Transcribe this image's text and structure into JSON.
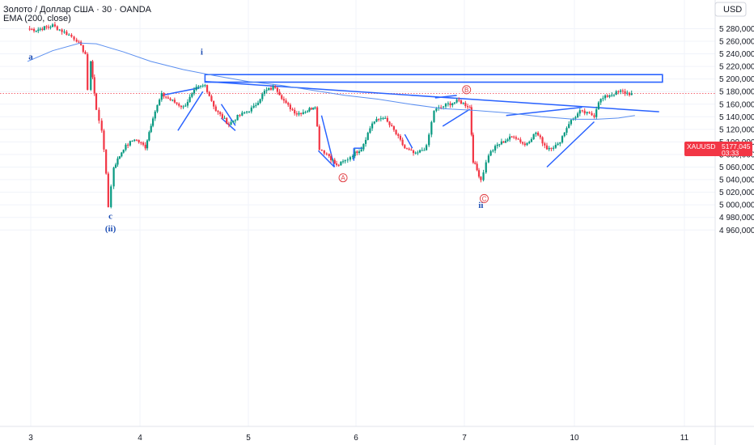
{
  "header": {
    "symbol_line": "Золото / Доллар США · 30 · OANDA",
    "indicator_line": "EMA (200, close)"
  },
  "currency_button": "USD",
  "price_tag": {
    "symbol": "XAUUSD",
    "price": "5177,045",
    "countdown": "03:33"
  },
  "colors": {
    "up": "#089981",
    "down": "#f23645",
    "ema": "#5b8ff0",
    "drawing": "#2962ff",
    "grid": "#f0f3fa",
    "wave_blue": "#1f4fb4",
    "wave_red": "#e0393e"
  },
  "wave_labels": [
    {
      "text": "a",
      "x": "3.0",
      "y": 5236,
      "style": "blue"
    },
    {
      "text": "i",
      "x": "4.57",
      "y": 5244,
      "style": "blue"
    },
    {
      "text": "c",
      "x": "3.73",
      "y": 4983,
      "style": "blue"
    },
    {
      "text": "(ii)",
      "x": "3.73",
      "y": 4963,
      "style": "blue"
    },
    {
      "text": "ii",
      "x": "7.15",
      "y": 5000,
      "style": "blue"
    },
    {
      "text": "A",
      "x": "5.88",
      "y": 5043,
      "style": "red-circle"
    },
    {
      "text": "B",
      "x": "7.02",
      "y": 5183,
      "style": "red-circle"
    },
    {
      "text": "C",
      "x": "7.18",
      "y": 5010,
      "style": "red-circle"
    }
  ],
  "chart_data": {
    "type": "candlestick",
    "instrument": "Золото / Доллар США · 30 · OANDA",
    "indicator": "EMA (200, close)",
    "x_ticks": [
      "3",
      "4",
      "5",
      "6",
      "7",
      "10",
      "11"
    ],
    "y_ticks": [
      "4 960,000",
      "4 980,000",
      "5 000,000",
      "5 020,000",
      "5 040,000",
      "5 060,000",
      "5 080,000",
      "5 100,000",
      "5 120,000",
      "5 140,000",
      "5 160,000",
      "5 180,000",
      "5 200,000",
      "5 220,000",
      "5 240,000",
      "5 260,000",
      "5 280,000"
    ],
    "ylim": [
      4955,
      5285
    ],
    "current_price": 5177.045,
    "grid": true,
    "candle_path": [
      [
        2.97,
        5280
      ],
      [
        3.05,
        5278
      ],
      [
        3.2,
        5285
      ],
      [
        3.35,
        5270
      ],
      [
        3.42,
        5262
      ],
      [
        3.5,
        5240
      ],
      [
        3.52,
        5180
      ],
      [
        3.55,
        5230
      ],
      [
        3.6,
        5150
      ],
      [
        3.65,
        5120
      ],
      [
        3.69,
        5050
      ],
      [
        3.71,
        4998
      ],
      [
        3.76,
        5060
      ],
      [
        3.85,
        5090
      ],
      [
        3.95,
        5105
      ],
      [
        4.05,
        5092
      ],
      [
        4.12,
        5140
      ],
      [
        4.2,
        5175
      ],
      [
        4.3,
        5165
      ],
      [
        4.4,
        5155
      ],
      [
        4.52,
        5185
      ],
      [
        4.6,
        5190
      ],
      [
        4.7,
        5150
      ],
      [
        4.82,
        5128
      ],
      [
        4.9,
        5140
      ],
      [
        5.05,
        5155
      ],
      [
        5.15,
        5180
      ],
      [
        5.25,
        5188
      ],
      [
        5.35,
        5160
      ],
      [
        5.45,
        5145
      ],
      [
        5.55,
        5150
      ],
      [
        5.62,
        5158
      ],
      [
        5.66,
        5090
      ],
      [
        5.75,
        5078
      ],
      [
        5.82,
        5062
      ],
      [
        5.9,
        5070
      ],
      [
        5.97,
        5080
      ],
      [
        6.05,
        5090
      ],
      [
        6.15,
        5130
      ],
      [
        6.25,
        5140
      ],
      [
        6.35,
        5118
      ],
      [
        6.45,
        5090
      ],
      [
        6.55,
        5080
      ],
      [
        6.65,
        5092
      ],
      [
        6.72,
        5150
      ],
      [
        6.85,
        5160
      ],
      [
        6.95,
        5165
      ],
      [
        7.05,
        5155
      ],
      [
        7.08,
        5070
      ],
      [
        7.15,
        5040
      ],
      [
        7.22,
        5080
      ],
      [
        7.3,
        5095
      ],
      [
        7.45,
        5110
      ],
      [
        7.55,
        5095
      ],
      [
        7.65,
        5115
      ],
      [
        7.75,
        5090
      ],
      [
        7.85,
        5095
      ],
      [
        7.95,
        5130
      ],
      [
        8.05,
        5148
      ],
      [
        8.18,
        5142
      ],
      [
        8.22,
        5165
      ],
      [
        8.32,
        5175
      ],
      [
        8.42,
        5180
      ],
      [
        8.52,
        5176
      ]
    ],
    "ema": [
      [
        2.97,
        5228
      ],
      [
        3.2,
        5245
      ],
      [
        3.45,
        5257
      ],
      [
        3.6,
        5256
      ],
      [
        3.85,
        5243
      ],
      [
        4.1,
        5228
      ],
      [
        4.4,
        5215
      ],
      [
        4.7,
        5205
      ],
      [
        5.0,
        5196
      ],
      [
        5.3,
        5190
      ],
      [
        5.6,
        5182
      ],
      [
        5.9,
        5174
      ],
      [
        6.2,
        5168
      ],
      [
        6.5,
        5160
      ],
      [
        6.8,
        5153
      ],
      [
        7.1,
        5150
      ],
      [
        7.4,
        5146
      ],
      [
        7.7,
        5140
      ],
      [
        8.0,
        5136
      ],
      [
        8.2,
        5136
      ],
      [
        8.4,
        5138
      ],
      [
        8.55,
        5142
      ]
    ],
    "trend_lines": [
      [
        [
          4.2,
          5174
        ],
        [
          4.55,
          5186
        ]
      ],
      [
        [
          4.35,
          5118
        ],
        [
          4.58,
          5180
        ]
      ],
      [
        [
          4.75,
          5160
        ],
        [
          4.88,
          5126
        ]
      ],
      [
        [
          4.75,
          5138
        ],
        [
          4.88,
          5118
        ]
      ],
      [
        [
          4.6,
          5196
        ],
        [
          8.77,
          5148
        ]
      ],
      [
        [
          5.68,
          5142
        ],
        [
          5.8,
          5060
        ]
      ],
      [
        [
          5.65,
          5086
        ],
        [
          5.8,
          5060
        ]
      ],
      [
        [
          5.98,
          5070
        ],
        [
          5.98,
          5090
        ]
      ],
      [
        [
          5.98,
          5090
        ],
        [
          6.06,
          5090
        ]
      ],
      [
        [
          6.45,
          5112
        ],
        [
          6.52,
          5090
        ]
      ],
      [
        [
          6.73,
          5170
        ],
        [
          6.93,
          5174
        ]
      ],
      [
        [
          6.8,
          5125
        ],
        [
          7.05,
          5152
        ]
      ],
      [
        [
          7.38,
          5142
        ],
        [
          8.07,
          5155
        ]
      ],
      [
        [
          7.75,
          5060
        ],
        [
          8.18,
          5132
        ]
      ]
    ],
    "rectangle": {
      "x0": 4.6,
      "x1": 8.8,
      "y0": 5195,
      "y1": 5207
    }
  }
}
